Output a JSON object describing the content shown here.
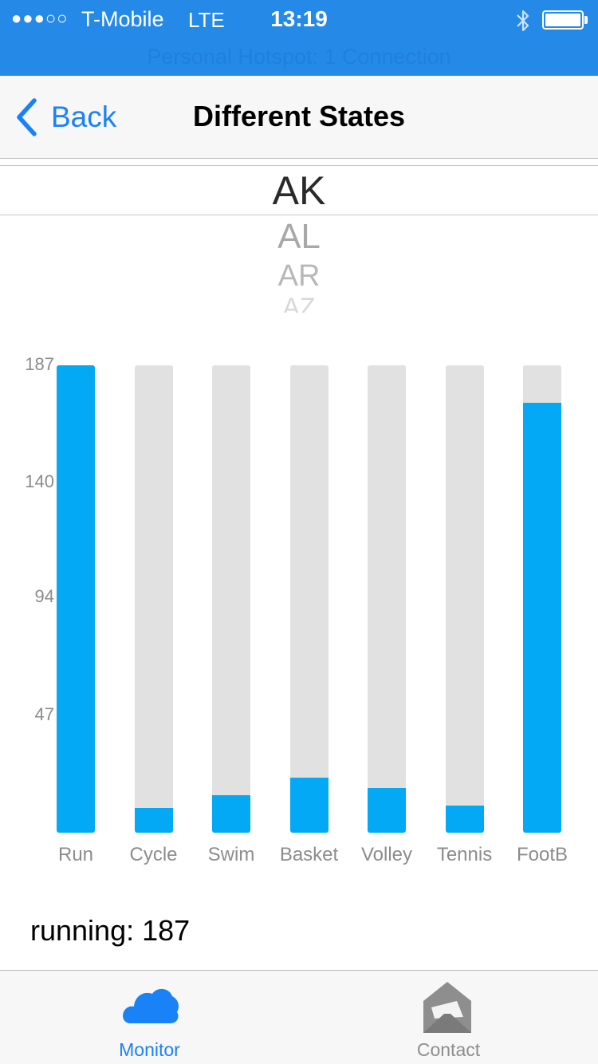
{
  "status_bar": {
    "signal": "●●●○○",
    "carrier": "T-Mobile",
    "network": "LTE",
    "time": "13:19",
    "hotspot": "Personal Hotspot: 1 Connection"
  },
  "nav": {
    "back_label": "Back",
    "title": "Different States"
  },
  "picker": {
    "selected": "AK",
    "items": [
      "AK",
      "AL",
      "AR",
      "AZ"
    ]
  },
  "chart_data": {
    "type": "bar",
    "categories": [
      "Run",
      "Cycle",
      "Swim",
      "Basket",
      "Volley",
      "Tennis",
      "FootB"
    ],
    "values": [
      187,
      10,
      15,
      22,
      18,
      11,
      172
    ],
    "ylim": [
      0,
      187
    ],
    "y_ticks": [
      "187",
      "140",
      "94",
      "47"
    ],
    "colors": {
      "fill": "#03a9f4",
      "track": "#e1e1e1"
    }
  },
  "summary": "running: 187",
  "tab_bar": {
    "tabs": [
      {
        "label": "Monitor",
        "icon": "cloud-icon",
        "active": true
      },
      {
        "label": "Contact",
        "icon": "envelope-icon",
        "active": false
      }
    ]
  },
  "colors": {
    "accent": "#1a82f7",
    "status_bar": "#2589e8",
    "inactive": "#8e8e8e"
  }
}
